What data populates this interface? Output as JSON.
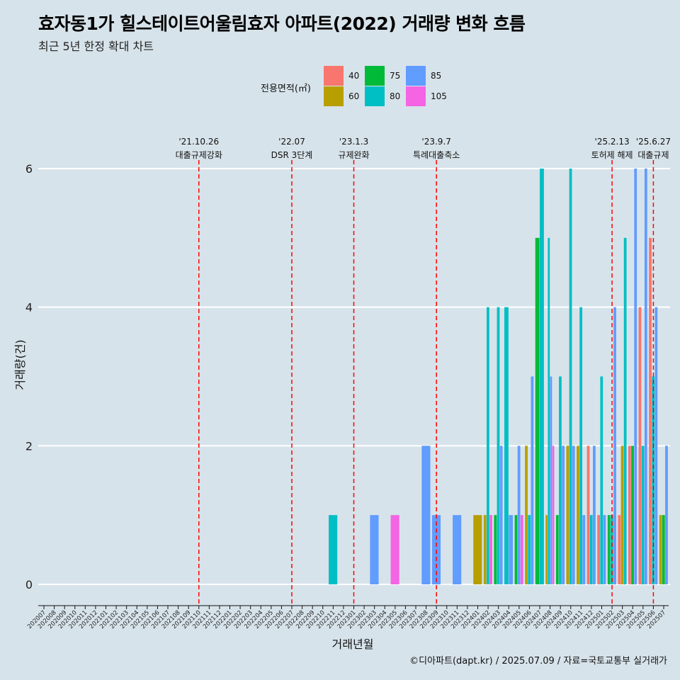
{
  "header": {
    "title": "효자동1가 힐스테이트어울림효자 아파트(2022) 거래량 변화 흐름",
    "subtitle": "최근 5년 한정 확대 차트"
  },
  "legend": {
    "title": "전용면적(㎡)",
    "items": [
      {
        "label": "40",
        "color": "#f8766d"
      },
      {
        "label": "60",
        "color": "#b79f00"
      },
      {
        "label": "75",
        "color": "#00ba38"
      },
      {
        "label": "80",
        "color": "#00bfc4"
      },
      {
        "label": "85",
        "color": "#619cff"
      },
      {
        "label": "105",
        "color": "#f564e3"
      }
    ]
  },
  "caption": "©디아파트(dapt.kr) / 2025.07.09 / 자료=국토교통부 실거래가",
  "chart_data": {
    "type": "bar",
    "xlabel": "거래년월",
    "ylabel": "거래량(건)",
    "ylim": [
      0,
      6
    ],
    "yticks": [
      0,
      2,
      4,
      6
    ],
    "grid": true,
    "legend_position": "top",
    "categories": [
      "202007",
      "202008",
      "202009",
      "202010",
      "202011",
      "202012",
      "202101",
      "202102",
      "202103",
      "202104",
      "202105",
      "202106",
      "202107",
      "202108",
      "202109",
      "202110",
      "202111",
      "202112",
      "202201",
      "202202",
      "202203",
      "202204",
      "202205",
      "202206",
      "202207",
      "202208",
      "202209",
      "202210",
      "202211",
      "202212",
      "202301",
      "202302",
      "202303",
      "202304",
      "202305",
      "202306",
      "202307",
      "202308",
      "202309",
      "202310",
      "202311",
      "202312",
      "202401",
      "202402",
      "202403",
      "202404",
      "202405",
      "202406",
      "202407",
      "202408",
      "202409",
      "202410",
      "202411",
      "202412",
      "202501",
      "202502",
      "202503",
      "202504",
      "202505",
      "202506",
      "202507"
    ],
    "bars": [
      {
        "month": "202211",
        "series": {
          "80": 1
        }
      },
      {
        "month": "202303",
        "series": {
          "85": 1
        }
      },
      {
        "month": "202305",
        "series": {
          "105": 1
        }
      },
      {
        "month": "202308",
        "series": {
          "85": 2
        }
      },
      {
        "month": "202309",
        "series": {
          "85": 1
        }
      },
      {
        "month": "202311",
        "series": {
          "85": 1
        }
      },
      {
        "month": "202401",
        "series": {
          "60": 1
        }
      },
      {
        "month": "202402",
        "series": {
          "60": 1,
          "80": 4,
          "105": 1
        }
      },
      {
        "month": "202403",
        "series": {
          "75": 1,
          "80": 4,
          "85": 2
        }
      },
      {
        "month": "202404",
        "series": {
          "80": 4,
          "85": 1
        }
      },
      {
        "month": "202405",
        "series": {
          "75": 1,
          "85": 2,
          "105": 1
        }
      },
      {
        "month": "202406",
        "series": {
          "60": 2,
          "80": 1,
          "85": 3
        }
      },
      {
        "month": "202407",
        "series": {
          "75": 5,
          "80": 6
        }
      },
      {
        "month": "202408",
        "series": {
          "60": 1,
          "80": 5,
          "85": 3,
          "105": 2
        }
      },
      {
        "month": "202409",
        "series": {
          "75": 1,
          "80": 3,
          "85": 2
        }
      },
      {
        "month": "202410",
        "series": {
          "60": 2,
          "80": 6,
          "85": 2
        }
      },
      {
        "month": "202411",
        "series": {
          "60": 2,
          "80": 4,
          "85": 1
        }
      },
      {
        "month": "202412",
        "series": {
          "40": 2,
          "80": 1,
          "85": 2
        }
      },
      {
        "month": "202501",
        "series": {
          "40": 1,
          "80": 3,
          "85": 1
        }
      },
      {
        "month": "202502",
        "series": {
          "75": 1,
          "80": 1,
          "85": 4
        }
      },
      {
        "month": "202503",
        "series": {
          "40": 1,
          "60": 2,
          "80": 5
        }
      },
      {
        "month": "202504",
        "series": {
          "40": 2,
          "75": 2,
          "85": 6
        }
      },
      {
        "month": "202505",
        "series": {
          "40": 4,
          "80": 2,
          "85": 6
        }
      },
      {
        "month": "202506",
        "series": {
          "40": 5,
          "80": 3,
          "85": 4
        }
      },
      {
        "month": "202507",
        "series": {
          "60": 1,
          "75": 1,
          "85": 2
        }
      }
    ],
    "events": [
      {
        "month": "202110",
        "date": "'21.10.26",
        "label": "대출규제강화"
      },
      {
        "month": "202207",
        "date": "'22.07",
        "label": "DSR 3단계"
      },
      {
        "month": "202301",
        "date": "'23.1.3",
        "label": "규제완화"
      },
      {
        "month": "202309",
        "date": "'23.9.7",
        "label": "특례대출축소"
      },
      {
        "month": "202502",
        "date": "'25.2.13",
        "label": "토허제 해제"
      },
      {
        "month": "202506",
        "date": "'25.6.27",
        "label": "대출규제"
      }
    ]
  }
}
